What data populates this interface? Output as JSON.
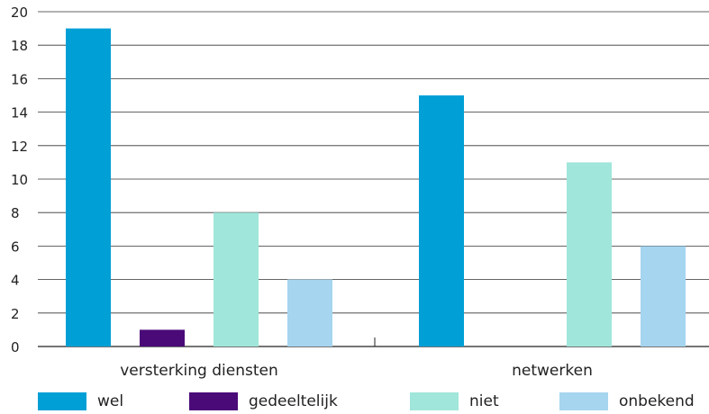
{
  "chart_data": {
    "type": "bar",
    "title": "",
    "xlabel": "",
    "ylabel": "",
    "categories": [
      "versterking diensten",
      "netwerken"
    ],
    "series": [
      {
        "name": "wel",
        "color": "#009fd6",
        "values": [
          19,
          15
        ]
      },
      {
        "name": "gedeeltelijk",
        "color": "#4a0a78",
        "values": [
          1,
          0
        ]
      },
      {
        "name": "niet",
        "color": "#a0e6da",
        "values": [
          8,
          11
        ]
      },
      {
        "name": "onbekend",
        "color": "#a6d5ef",
        "values": [
          4,
          6
        ]
      }
    ],
    "ylim": [
      0,
      20
    ],
    "yticks": [
      0,
      2,
      4,
      6,
      8,
      10,
      12,
      14,
      16,
      18,
      20
    ],
    "grid": true,
    "legend_position": "bottom"
  }
}
